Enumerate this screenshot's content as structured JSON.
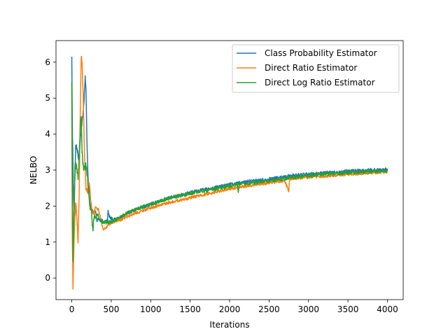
{
  "chart_data": {
    "type": "line",
    "xlabel": "Iterations",
    "ylabel": "NELBO",
    "xlim": [
      -200,
      4200
    ],
    "ylim": [
      -0.6,
      6.6
    ],
    "xticks": [
      0,
      500,
      1000,
      1500,
      2000,
      2500,
      3000,
      3500,
      4000
    ],
    "yticks": [
      0,
      1,
      2,
      3,
      4,
      5,
      6
    ],
    "legend_position": "upper right",
    "grid": false,
    "series": [
      {
        "name": "Class Probability Estimator",
        "color": "#1f77b4",
        "noise": 0.05,
        "points": [
          [
            0,
            6.25
          ],
          [
            8,
            4.0
          ],
          [
            20,
            2.6
          ],
          [
            30,
            1.8
          ],
          [
            40,
            3.0
          ],
          [
            50,
            3.6
          ],
          [
            60,
            3.7
          ],
          [
            75,
            3.5
          ],
          [
            90,
            3.3
          ],
          [
            110,
            3.9
          ],
          [
            130,
            4.3
          ],
          [
            150,
            4.7
          ],
          [
            170,
            5.55
          ],
          [
            180,
            5.3
          ],
          [
            195,
            3.5
          ],
          [
            210,
            2.6
          ],
          [
            230,
            2.3
          ],
          [
            250,
            1.9
          ],
          [
            280,
            1.75
          ],
          [
            300,
            1.9
          ],
          [
            320,
            1.6
          ],
          [
            350,
            1.65
          ],
          [
            380,
            1.6
          ],
          [
            420,
            1.55
          ],
          [
            450,
            1.6
          ],
          [
            460,
            1.85
          ],
          [
            470,
            1.75
          ],
          [
            500,
            1.65
          ],
          [
            550,
            1.62
          ],
          [
            600,
            1.65
          ],
          [
            700,
            1.8
          ],
          [
            800,
            1.9
          ],
          [
            1000,
            2.05
          ],
          [
            1200,
            2.2
          ],
          [
            1500,
            2.38
          ],
          [
            1800,
            2.5
          ],
          [
            2000,
            2.6
          ],
          [
            2200,
            2.67
          ],
          [
            2500,
            2.75
          ],
          [
            2800,
            2.85
          ],
          [
            3000,
            2.88
          ],
          [
            3500,
            2.97
          ],
          [
            4000,
            3.02
          ]
        ]
      },
      {
        "name": "Direct Ratio Estimator",
        "color": "#ff7f0e",
        "noise": 0.04,
        "points": [
          [
            0,
            5.5
          ],
          [
            5,
            1.5
          ],
          [
            15,
            -0.25
          ],
          [
            25,
            0.6
          ],
          [
            35,
            1.5
          ],
          [
            50,
            2.1
          ],
          [
            65,
            1.7
          ],
          [
            80,
            1.0
          ],
          [
            95,
            2.5
          ],
          [
            110,
            5.0
          ],
          [
            120,
            6.2
          ],
          [
            130,
            6.0
          ],
          [
            145,
            5.0
          ],
          [
            160,
            3.5
          ],
          [
            180,
            2.5
          ],
          [
            200,
            2.4
          ],
          [
            220,
            2.7
          ],
          [
            240,
            2.2
          ],
          [
            260,
            1.8
          ],
          [
            280,
            1.8
          ],
          [
            300,
            1.95
          ],
          [
            340,
            1.9
          ],
          [
            370,
            1.6
          ],
          [
            400,
            1.35
          ],
          [
            430,
            1.4
          ],
          [
            470,
            1.5
          ],
          [
            520,
            1.55
          ],
          [
            600,
            1.6
          ],
          [
            700,
            1.7
          ],
          [
            800,
            1.8
          ],
          [
            1000,
            1.95
          ],
          [
            1200,
            2.08
          ],
          [
            1500,
            2.23
          ],
          [
            1800,
            2.38
          ],
          [
            2000,
            2.48
          ],
          [
            2200,
            2.55
          ],
          [
            2500,
            2.65
          ],
          [
            2700,
            2.7
          ],
          [
            2750,
            2.4
          ],
          [
            2760,
            2.75
          ],
          [
            2800,
            2.77
          ],
          [
            3000,
            2.8
          ],
          [
            3500,
            2.88
          ],
          [
            4000,
            2.95
          ]
        ]
      },
      {
        "name": "Direct Log Ratio Estimator",
        "color": "#2ca02c",
        "noise": 0.05,
        "points": [
          [
            0,
            5.55
          ],
          [
            5,
            3.5
          ],
          [
            15,
            0.55
          ],
          [
            25,
            1.5
          ],
          [
            35,
            2.6
          ],
          [
            50,
            3.2
          ],
          [
            65,
            3.0
          ],
          [
            80,
            2.8
          ],
          [
            95,
            3.4
          ],
          [
            110,
            4.3
          ],
          [
            120,
            4.5
          ],
          [
            130,
            3.5
          ],
          [
            150,
            3.0
          ],
          [
            170,
            3.2
          ],
          [
            190,
            3.0
          ],
          [
            210,
            2.5
          ],
          [
            230,
            2.0
          ],
          [
            250,
            1.8
          ],
          [
            270,
            1.25
          ],
          [
            280,
            1.7
          ],
          [
            300,
            1.7
          ],
          [
            330,
            1.75
          ],
          [
            360,
            1.6
          ],
          [
            400,
            1.55
          ],
          [
            450,
            1.55
          ],
          [
            500,
            1.55
          ],
          [
            550,
            1.6
          ],
          [
            600,
            1.68
          ],
          [
            700,
            1.8
          ],
          [
            800,
            1.9
          ],
          [
            1000,
            2.05
          ],
          [
            1200,
            2.2
          ],
          [
            1500,
            2.35
          ],
          [
            1800,
            2.47
          ],
          [
            2000,
            2.55
          ],
          [
            2100,
            2.6
          ],
          [
            2110,
            2.35
          ],
          [
            2120,
            2.6
          ],
          [
            2200,
            2.62
          ],
          [
            2500,
            2.7
          ],
          [
            2800,
            2.8
          ],
          [
            3000,
            2.85
          ],
          [
            3500,
            2.93
          ],
          [
            4000,
            2.98
          ]
        ]
      }
    ]
  }
}
